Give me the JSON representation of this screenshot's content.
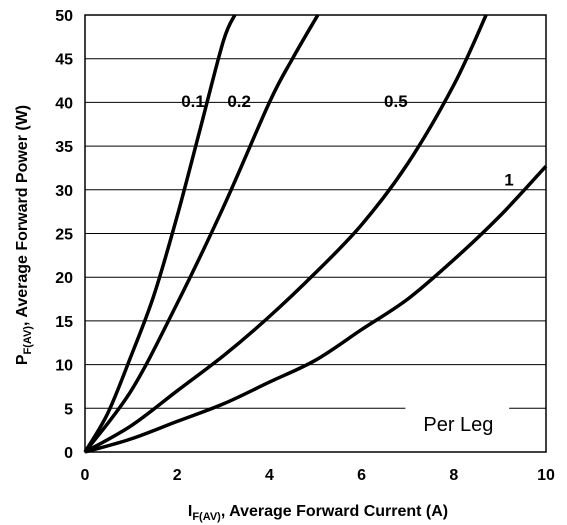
{
  "chart_data": {
    "type": "line",
    "xlabel_main": "I",
    "xlabel_sub": "F(AV)",
    "xlabel_rest": ", Average Forward Current (A)",
    "ylabel_main": "P",
    "ylabel_sub": "F(AV)",
    "ylabel_rest": ", Average Forward Power (W)",
    "xlim": [
      0,
      10
    ],
    "ylim": [
      0,
      50
    ],
    "x_ticks": [
      "0",
      "2",
      "4",
      "6",
      "8",
      "10"
    ],
    "y_ticks": [
      "0",
      "5",
      "10",
      "15",
      "20",
      "25",
      "30",
      "35",
      "40",
      "45",
      "50"
    ],
    "grid": "horizontal",
    "annotation": "Per Leg",
    "series": [
      {
        "name": "0.1",
        "x": [
          0,
          0.5,
          1.0,
          1.5,
          2.0,
          2.5,
          3.0,
          3.25
        ],
        "y": [
          0,
          4.5,
          11.0,
          18.0,
          27.0,
          37.0,
          47.0,
          50.0
        ]
      },
      {
        "name": "0.2",
        "x": [
          0,
          1.0,
          2.0,
          3.0,
          4.0,
          4.5,
          5.05
        ],
        "y": [
          0,
          7.0,
          17.0,
          28.0,
          40.0,
          45.0,
          50.0
        ]
      },
      {
        "name": "0.5",
        "x": [
          0,
          1.0,
          2.0,
          3.0,
          4.0,
          5.0,
          6.0,
          7.0,
          8.0,
          8.7
        ],
        "y": [
          0,
          3.0,
          7.0,
          11.0,
          15.5,
          20.5,
          26.0,
          33.0,
          42.0,
          50.0
        ]
      },
      {
        "name": "1",
        "x": [
          0,
          1.0,
          2.0,
          3.0,
          4.0,
          5.0,
          6.0,
          7.0,
          8.0,
          9.0,
          10.0
        ],
        "y": [
          0,
          1.5,
          3.5,
          5.5,
          8.0,
          10.5,
          14.0,
          17.5,
          22.0,
          27.0,
          32.7
        ]
      }
    ]
  }
}
